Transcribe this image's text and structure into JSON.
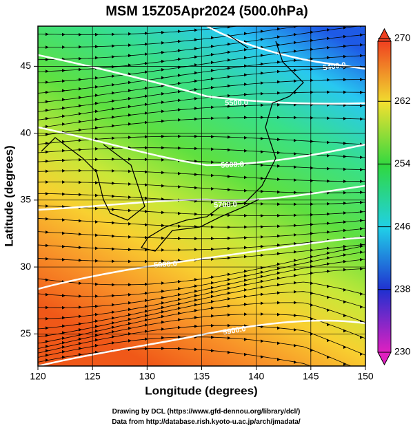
{
  "chart_data": {
    "type": "map",
    "title": "MSM 15Z05Apr2024 (500.0hPa)",
    "x_label": "Longitude (degrees)",
    "y_label": "Latitude  (degrees)",
    "xlim": [
      120,
      150
    ],
    "ylim": [
      22.6,
      48
    ],
    "xticks": [
      120,
      125,
      130,
      135,
      140,
      145,
      150
    ],
    "yticks": [
      25,
      30,
      35,
      40,
      45
    ],
    "grid": true,
    "colorbar": {
      "lim": [
        230,
        270
      ],
      "ticks": [
        230,
        238,
        246,
        254,
        262,
        270
      ]
    },
    "contour_labels": [
      "5400.0",
      "5500.0",
      "5600.0",
      "5700.0",
      "5800.0",
      "5900.0"
    ],
    "footer": [
      "Drawing by DCL (https://www.gfd-dennou.org/library/dcl/)",
      "Data from http://database.rish.kyoto-u.ac.jp/arch/jmadata/"
    ]
  }
}
